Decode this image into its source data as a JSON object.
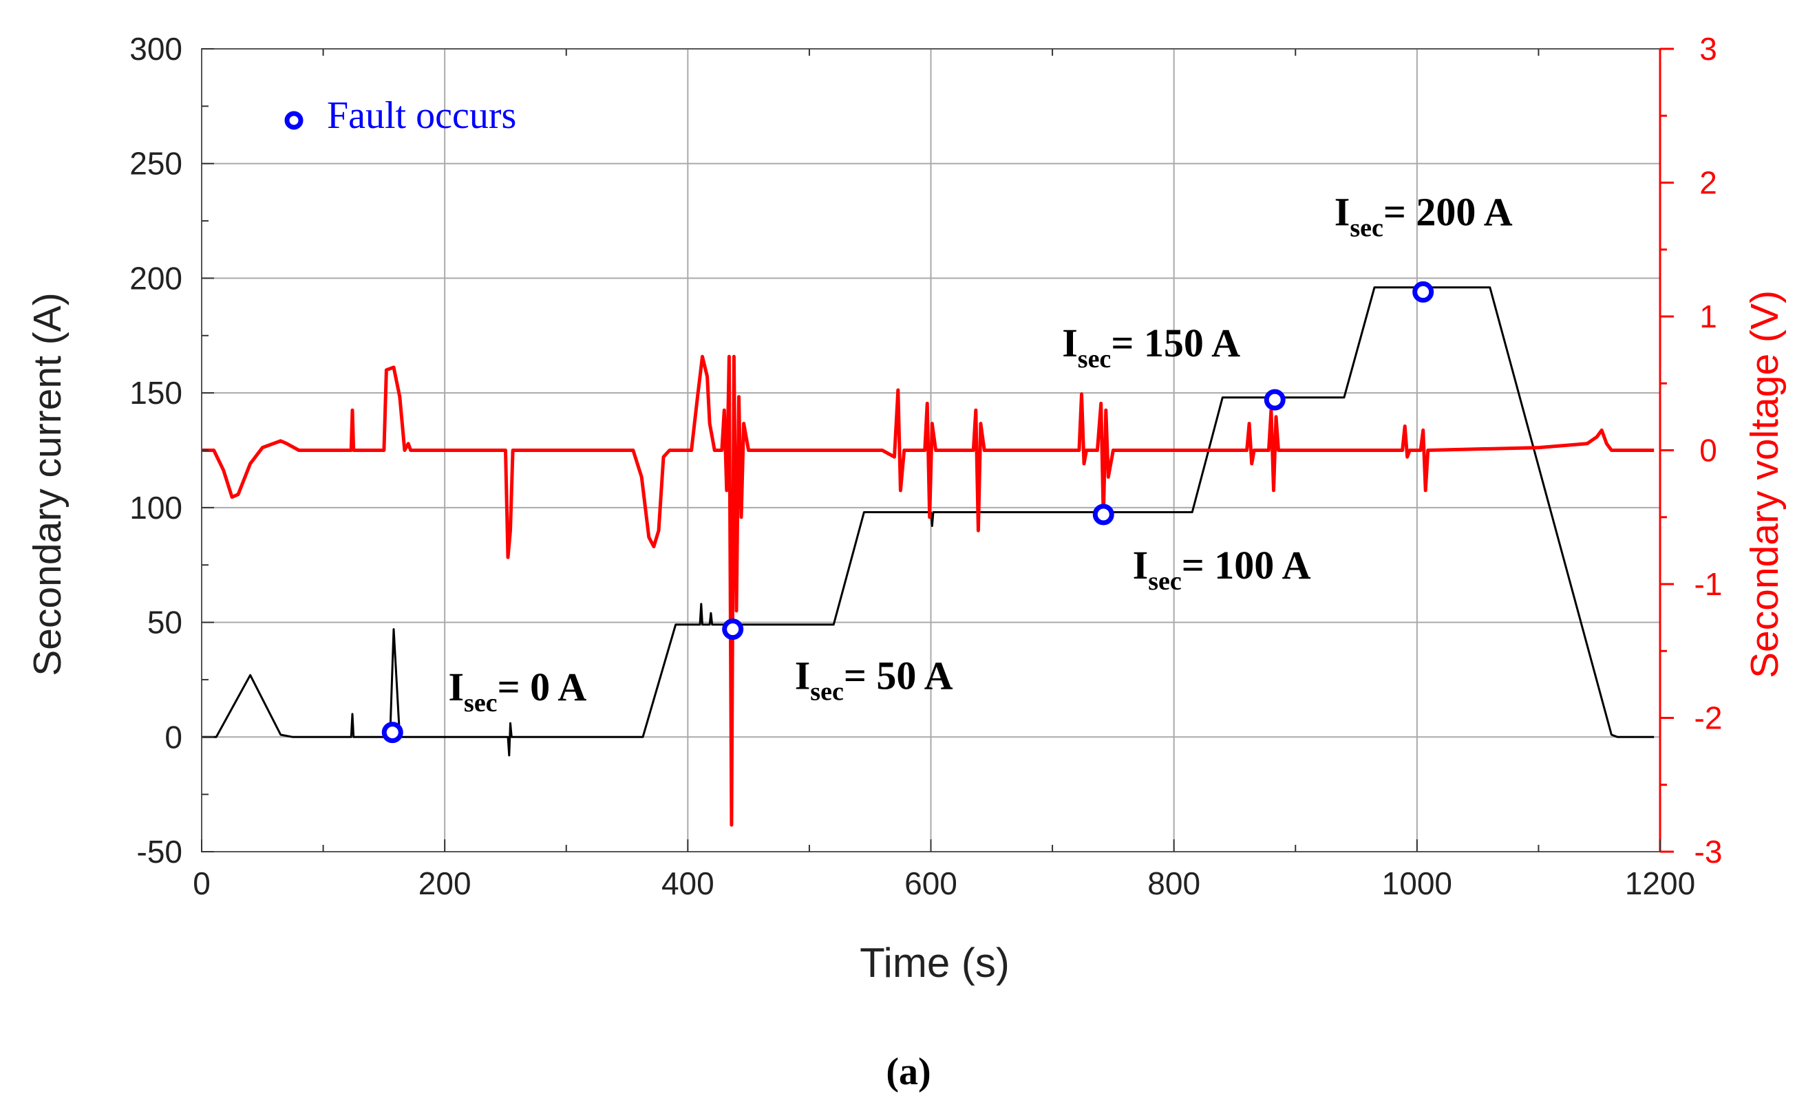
{
  "chart_data": {
    "type": "line",
    "panel_label": "(a)",
    "xlabel": "Time (s)",
    "ylabel_left": "Secondary current (A)",
    "ylabel_right": "Secondary voltage (V)",
    "xlim": [
      0,
      1200
    ],
    "ylim_left": [
      -50,
      300
    ],
    "ylim_right": [
      -3,
      3
    ],
    "x_ticks": [
      "0",
      "200",
      "400",
      "600",
      "800",
      "1000",
      "1200"
    ],
    "y_left_ticks": [
      "-50",
      "0",
      "50",
      "100",
      "150",
      "200",
      "250",
      "300"
    ],
    "y_right_ticks": [
      "-3",
      "-2",
      "-1",
      "0",
      "1",
      "2",
      "3"
    ],
    "grid": true,
    "colors": {
      "current": "#000000",
      "voltage": "#ff0000",
      "fault": "#0000ff"
    },
    "legend": {
      "label": "Fault occurs",
      "position": "top-left"
    },
    "series": [
      {
        "name": "Secondary current",
        "axis": "left",
        "points": [
          [
            0,
            0
          ],
          [
            12,
            0
          ],
          [
            40,
            27
          ],
          [
            65,
            1
          ],
          [
            75,
            0
          ],
          [
            123,
            0
          ],
          [
            124,
            10
          ],
          [
            125,
            0
          ],
          [
            155,
            0
          ],
          [
            158,
            47
          ],
          [
            163,
            0
          ],
          [
            168,
            0
          ],
          [
            175,
            0
          ],
          [
            252,
            0
          ],
          [
            253,
            -8
          ],
          [
            254,
            6
          ],
          [
            255,
            0
          ],
          [
            363,
            0
          ],
          [
            390,
            49
          ],
          [
            410,
            49
          ],
          [
            411,
            58
          ],
          [
            412,
            49
          ],
          [
            418,
            49
          ],
          [
            419,
            54
          ],
          [
            420,
            49
          ],
          [
            520,
            49
          ],
          [
            545,
            98
          ],
          [
            600,
            98
          ],
          [
            601,
            92
          ],
          [
            602,
            98
          ],
          [
            815,
            98
          ],
          [
            840,
            148
          ],
          [
            940,
            148
          ],
          [
            965,
            196
          ],
          [
            1060,
            196
          ],
          [
            1160,
            1
          ],
          [
            1165,
            0
          ],
          [
            1195,
            0
          ]
        ]
      },
      {
        "name": "Secondary voltage",
        "axis": "right",
        "points": [
          [
            0,
            0
          ],
          [
            10,
            0
          ],
          [
            18,
            -0.15
          ],
          [
            25,
            -0.35
          ],
          [
            30,
            -0.33
          ],
          [
            40,
            -0.1
          ],
          [
            50,
            0.02
          ],
          [
            65,
            0.07
          ],
          [
            70,
            0.05
          ],
          [
            80,
            0
          ],
          [
            123,
            0
          ],
          [
            124,
            0.3
          ],
          [
            125,
            0
          ],
          [
            150,
            0
          ],
          [
            152,
            0.6
          ],
          [
            158,
            0.62
          ],
          [
            163,
            0.4
          ],
          [
            167,
            0
          ],
          [
            170,
            0.05
          ],
          [
            172,
            0
          ],
          [
            250,
            0
          ],
          [
            252,
            -0.8
          ],
          [
            254,
            -0.6
          ],
          [
            256,
            0
          ],
          [
            355,
            0
          ],
          [
            362,
            -0.2
          ],
          [
            368,
            -0.65
          ],
          [
            372,
            -0.72
          ],
          [
            376,
            -0.6
          ],
          [
            380,
            -0.05
          ],
          [
            385,
            0
          ],
          [
            403,
            0
          ],
          [
            408,
            0.4
          ],
          [
            412,
            0.7
          ],
          [
            416,
            0.55
          ],
          [
            418,
            0.2
          ],
          [
            420,
            0.1
          ],
          [
            422,
            0
          ],
          [
            428,
            0
          ],
          [
            430,
            0.3
          ],
          [
            432,
            -0.3
          ],
          [
            434,
            0.7
          ],
          [
            436,
            -2.8
          ],
          [
            438,
            0.7
          ],
          [
            440,
            -1.2
          ],
          [
            442,
            0.4
          ],
          [
            444,
            -0.5
          ],
          [
            446,
            0.2
          ],
          [
            450,
            0
          ],
          [
            560,
            0
          ],
          [
            570,
            -0.05
          ],
          [
            573,
            0.45
          ],
          [
            575,
            -0.3
          ],
          [
            578,
            0
          ],
          [
            595,
            0
          ],
          [
            597,
            0.35
          ],
          [
            599,
            -0.5
          ],
          [
            601,
            0.2
          ],
          [
            604,
            0
          ],
          [
            635,
            0
          ],
          [
            637,
            0.3
          ],
          [
            639,
            -0.6
          ],
          [
            641,
            0.2
          ],
          [
            644,
            0
          ],
          [
            722,
            0
          ],
          [
            724,
            0.42
          ],
          [
            726,
            -0.1
          ],
          [
            728,
            0
          ],
          [
            737,
            0
          ],
          [
            740,
            0.35
          ],
          [
            742,
            -0.5
          ],
          [
            744,
            0.3
          ],
          [
            746,
            -0.2
          ],
          [
            750,
            0
          ],
          [
            860,
            0
          ],
          [
            862,
            0.2
          ],
          [
            864,
            -0.1
          ],
          [
            866,
            0
          ],
          [
            878,
            0
          ],
          [
            880,
            0.3
          ],
          [
            882,
            -0.3
          ],
          [
            884,
            0.25
          ],
          [
            886,
            0
          ],
          [
            988,
            0
          ],
          [
            990,
            0.18
          ],
          [
            992,
            -0.05
          ],
          [
            994,
            0
          ],
          [
            1003,
            0
          ],
          [
            1005,
            0.15
          ],
          [
            1007,
            -0.3
          ],
          [
            1009,
            0
          ],
          [
            1100,
            0.02
          ],
          [
            1140,
            0.05
          ],
          [
            1148,
            0.1
          ],
          [
            1152,
            0.15
          ],
          [
            1156,
            0.05
          ],
          [
            1160,
            0
          ],
          [
            1195,
            0
          ]
        ]
      }
    ],
    "fault_points": [
      {
        "x": 157,
        "y": 2
      },
      {
        "x": 437,
        "y": 47
      },
      {
        "x": 742,
        "y": 97
      },
      {
        "x": 883,
        "y": 147
      },
      {
        "x": 1005,
        "y": 194
      }
    ],
    "annotations": [
      {
        "main": "I",
        "sub": "sec",
        "rest": "= 0 A",
        "x": 203,
        "y": 16
      },
      {
        "main": "I",
        "sub": "sec",
        "rest": "= 50 A",
        "x": 488,
        "y": 21
      },
      {
        "main": "I",
        "sub": "sec",
        "rest": "= 100 A",
        "x": 766,
        "y": 69
      },
      {
        "main": "I",
        "sub": "sec",
        "rest": "= 150 A",
        "x": 708,
        "y": 166
      },
      {
        "main": "I",
        "sub": "sec",
        "rest": "= 200 A",
        "x": 932,
        "y": 223
      }
    ]
  }
}
